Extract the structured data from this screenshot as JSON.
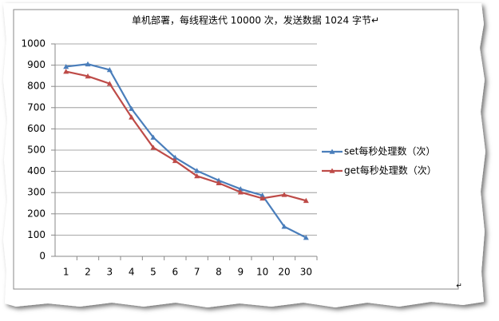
{
  "chart_data": {
    "type": "line",
    "title": "单机部署，每线程迭代 10000 次，发送数据 1024 字节↵",
    "categories": [
      "1",
      "2",
      "3",
      "4",
      "5",
      "6",
      "7",
      "8",
      "9",
      "10",
      "20",
      "30"
    ],
    "series": [
      {
        "name": "set每秒处理数（次）",
        "color": "#4a7ebb",
        "values": [
          893,
          905,
          878,
          695,
          560,
          465,
          403,
          357,
          317,
          287,
          140,
          88
        ]
      },
      {
        "name": "get每秒处理数（次）",
        "color": "#be4b48",
        "values": [
          870,
          848,
          813,
          655,
          512,
          450,
          378,
          345,
          302,
          273,
          290,
          262
        ]
      }
    ],
    "ylim": [
      0,
      1000
    ],
    "yticks": [
      0,
      100,
      200,
      300,
      400,
      500,
      600,
      700,
      800,
      900,
      1000
    ],
    "grid": true,
    "legend": "right",
    "end_mark": "↵"
  }
}
